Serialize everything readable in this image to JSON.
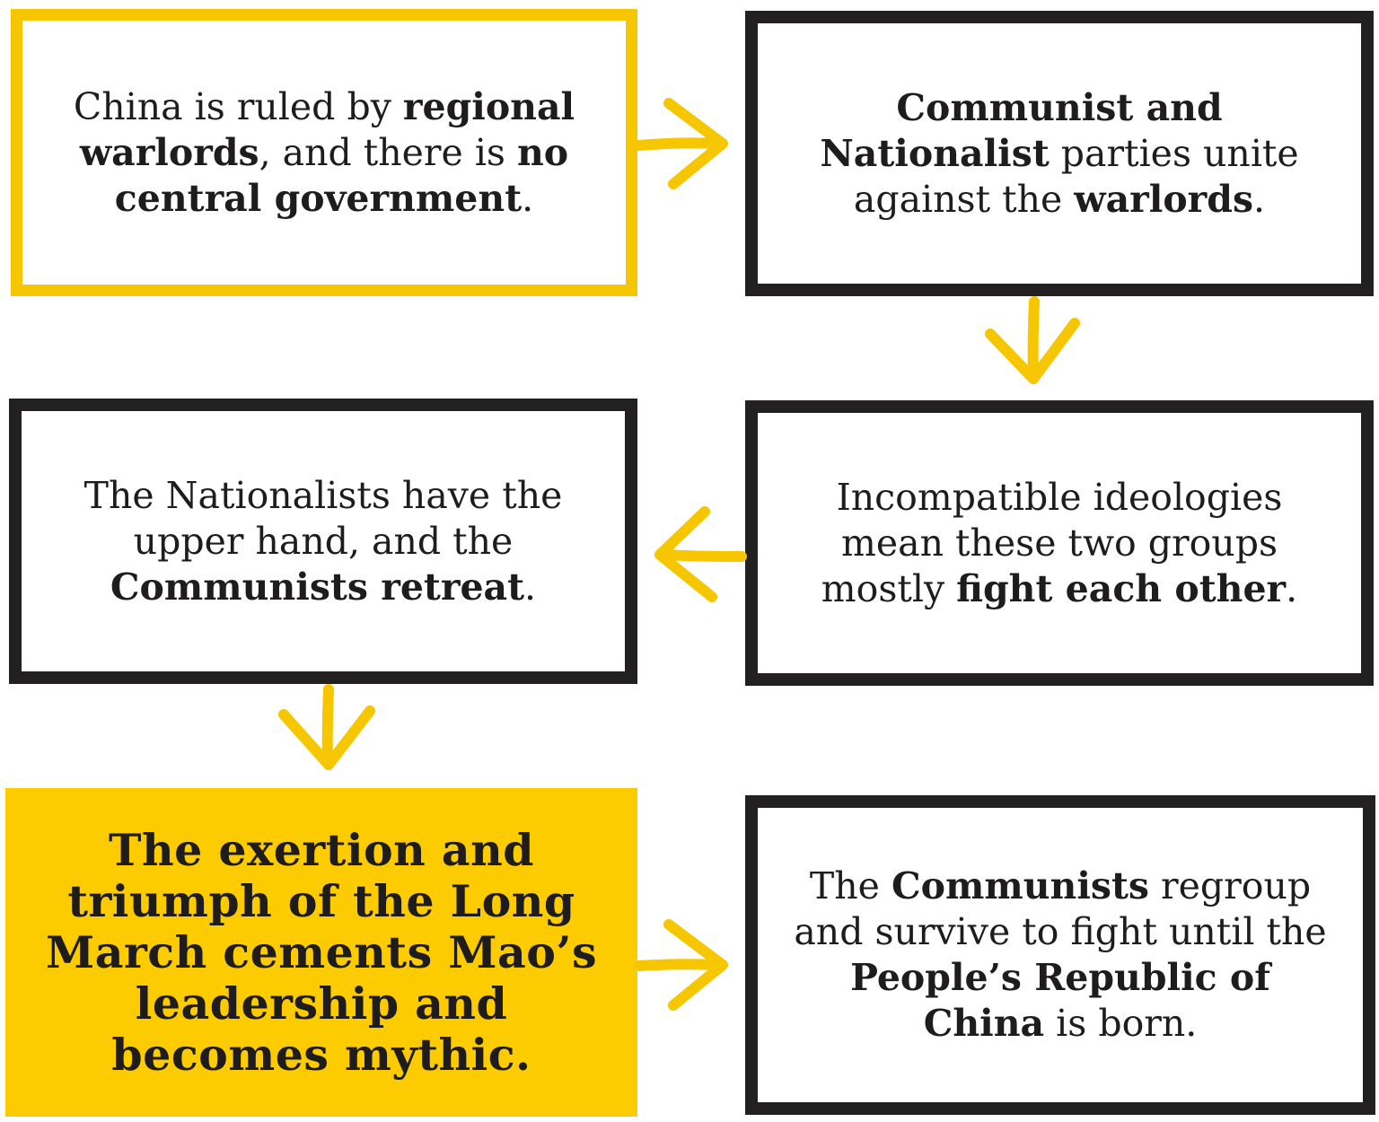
{
  "colors": {
    "yellow": "#f6c600",
    "fill_yellow": "#fccb00",
    "ink": "#222020"
  },
  "boxes": {
    "b1": {
      "p1": "China is ruled by ",
      "b1": "regional warlords",
      "p2": ", and there is ",
      "b2": "no central government",
      "p3": "."
    },
    "b2": {
      "b1": "Communist and Nationalist",
      "p1": " parties unite against the ",
      "b2": "warlords",
      "p2": "."
    },
    "b3": {
      "p1": "The Nationalists have the upper hand, and the ",
      "b1": "Communists retreat",
      "p2": "."
    },
    "b4": {
      "p1": "Incompatible ideologies mean these two groups mostly ",
      "b1": "fight each other",
      "p2": "."
    },
    "b5": {
      "text": "The exertion and triumph of the Long March cements Mao’s leadership and becomes mythic."
    },
    "b6": {
      "p1": "The ",
      "b1": "Communists",
      "p2": " regroup and survive to fight until the ",
      "b2": "People’s Republic of China",
      "p3": " is born."
    }
  },
  "arrows": [
    "right",
    "down",
    "left",
    "down",
    "right"
  ]
}
